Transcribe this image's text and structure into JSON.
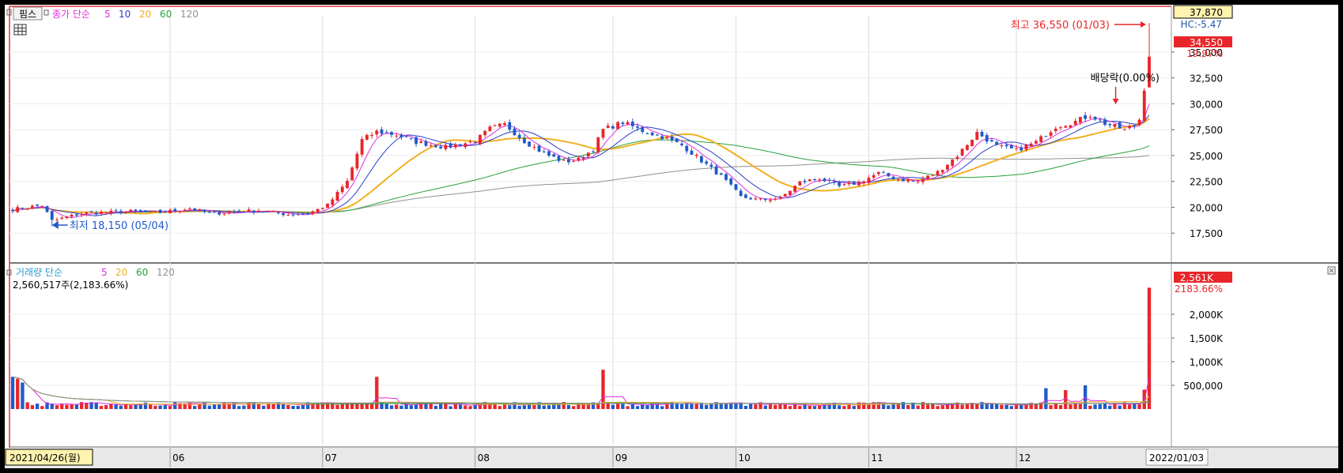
{
  "colors": {
    "up": "#e8262a",
    "down": "#1f5bc8",
    "ma5": "#e02ee0",
    "ma10": "#2a3cc8",
    "ma20": "#f0b020",
    "ma60": "#28a03c",
    "ma120": "#909090",
    "axis_label_bg": "#fff3b0",
    "highlight": "#e8262a"
  },
  "top_legend": {
    "tag": "핌스",
    "label": "종가 단순",
    "periods": [
      "5",
      "10",
      "20",
      "60",
      "120"
    ]
  },
  "bottom_legend": {
    "label": "거래량  단순",
    "periods": [
      "5",
      "20",
      "60",
      "120"
    ],
    "volume_text": "2,560,517주(2,183.66%)"
  },
  "chart_data": [
    {
      "type": "candlestick",
      "y_ticks": [
        "35,000",
        "32,500",
        "30,000",
        "27,500",
        "25,000",
        "22,500",
        "20,000",
        "17,500"
      ],
      "ylim": [
        15000,
        38500
      ],
      "price_labels": {
        "top_value": "37,870",
        "hc": "HC:-5.47",
        "current": "34,550",
        "change": "19.97%"
      },
      "annotations": {
        "high": "최고 36,550 (01/03)",
        "low": "최저 18,150 (05/04)",
        "dividend": "배당락(0.00%)"
      },
      "anchors": [
        [
          0,
          19800
        ],
        [
          6,
          20200
        ],
        [
          8,
          18700
        ],
        [
          14,
          19400
        ],
        [
          24,
          19600
        ],
        [
          30,
          19500
        ],
        [
          36,
          19900
        ],
        [
          40,
          19400
        ],
        [
          44,
          19500
        ],
        [
          50,
          19700
        ],
        [
          56,
          19300
        ],
        [
          60,
          19400
        ],
        [
          64,
          20200
        ],
        [
          68,
          22500
        ],
        [
          71,
          26500
        ],
        [
          74,
          27300
        ],
        [
          78,
          27000
        ],
        [
          82,
          26300
        ],
        [
          88,
          25800
        ],
        [
          94,
          26400
        ],
        [
          97,
          27600
        ],
        [
          100,
          28000
        ],
        [
          104,
          26400
        ],
        [
          108,
          25200
        ],
        [
          112,
          24400
        ],
        [
          115,
          24600
        ],
        [
          118,
          25600
        ],
        [
          120,
          27500
        ],
        [
          124,
          28200
        ],
        [
          128,
          27400
        ],
        [
          132,
          26800
        ],
        [
          136,
          26000
        ],
        [
          140,
          24500
        ],
        [
          144,
          23000
        ],
        [
          148,
          21000
        ],
        [
          152,
          20700
        ],
        [
          156,
          20900
        ],
        [
          160,
          22400
        ],
        [
          164,
          22800
        ],
        [
          168,
          22000
        ],
        [
          172,
          22400
        ],
        [
          176,
          23300
        ],
        [
          180,
          22700
        ],
        [
          184,
          22500
        ],
        [
          188,
          23400
        ],
        [
          192,
          25000
        ],
        [
          196,
          27200
        ],
        [
          200,
          25900
        ],
        [
          204,
          25500
        ],
        [
          208,
          26300
        ],
        [
          212,
          27800
        ],
        [
          216,
          28300
        ],
        [
          219,
          28900
        ],
        [
          222,
          28100
        ],
        [
          226,
          27500
        ],
        [
          228,
          27900
        ],
        [
          229,
          28500
        ],
        [
          231,
          34550
        ]
      ],
      "volume_y_ticks": [
        "2,000K",
        "1,500K",
        "1,000K",
        "500,000"
      ],
      "volume_ylim": [
        0,
        2900000
      ],
      "volume_labels": {
        "current": "2,561K",
        "pct": "2183.66%"
      },
      "volume_spikes": [
        [
          0,
          680000
        ],
        [
          1,
          640000
        ],
        [
          2,
          560000
        ],
        [
          74,
          680000
        ],
        [
          120,
          830000
        ],
        [
          210,
          440000
        ],
        [
          214,
          400000
        ],
        [
          218,
          500000
        ],
        [
          230,
          410000
        ],
        [
          231,
          2560517
        ]
      ],
      "x_ticks": [
        "2021/04/26(월)",
        "06",
        "07",
        "08",
        "09",
        "10",
        "11",
        "12",
        "2022/01/03"
      ],
      "x_tick_days": [
        0,
        32,
        63,
        94,
        122,
        147,
        174,
        204,
        231
      ]
    }
  ]
}
